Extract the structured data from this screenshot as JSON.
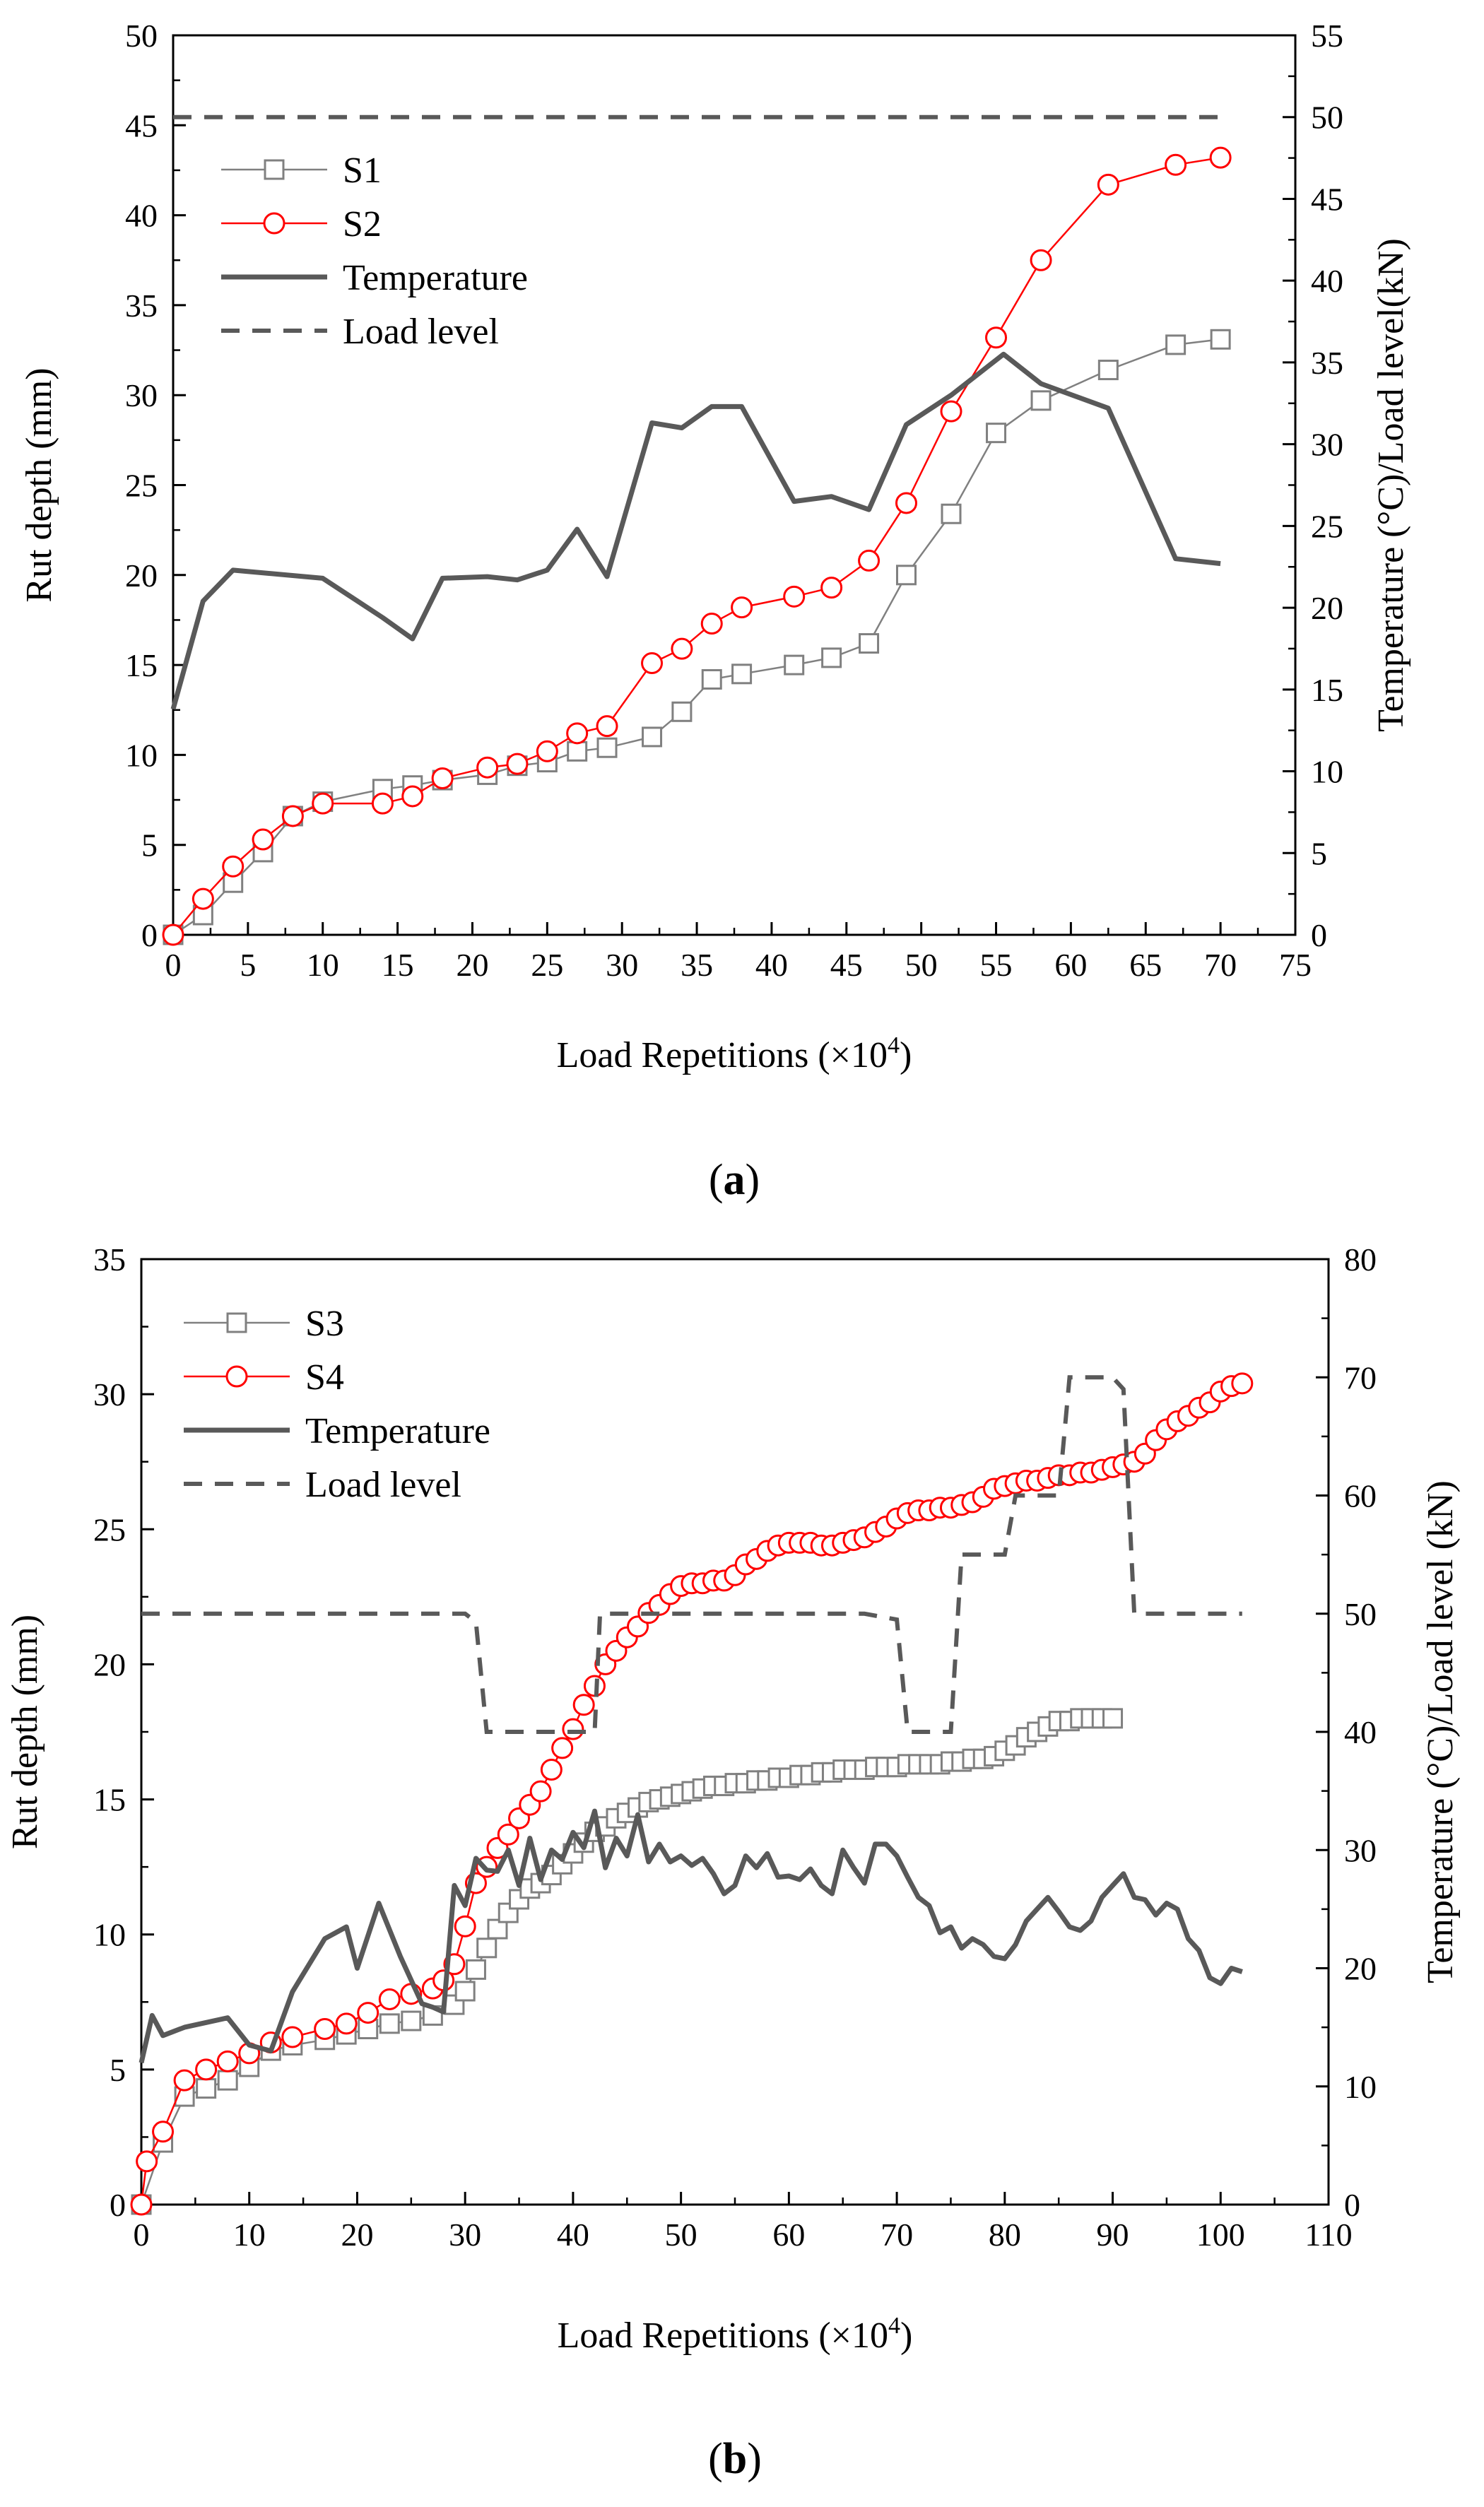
{
  "chart_data": [
    {
      "id": "a",
      "type": "line",
      "caption_letter": "a",
      "xlabel": "Load Repetitions (×10",
      "xlabel_sup": "4",
      "xlabel_end": ")",
      "ylabel": "Rut depth (mm)",
      "y2label": "Temperature (°C)/Load level(kN)",
      "xlim": [
        0,
        75
      ],
      "xticks": [
        0,
        5,
        10,
        15,
        20,
        25,
        30,
        35,
        40,
        45,
        50,
        55,
        60,
        65,
        70,
        75
      ],
      "ylim": [
        0,
        50
      ],
      "yticks": [
        0,
        5,
        10,
        15,
        20,
        25,
        30,
        35,
        40,
        45,
        50
      ],
      "y2lim": [
        0,
        55
      ],
      "y2ticks": [
        0,
        5,
        10,
        15,
        20,
        25,
        30,
        35,
        40,
        45,
        50,
        55
      ],
      "series": [
        {
          "name": "S1",
          "axis": "left",
          "style": "square",
          "color": "#808080",
          "x": [
            0,
            2,
            4,
            6,
            8,
            10,
            14,
            16,
            18,
            21,
            23,
            25,
            27,
            29,
            32,
            34,
            36,
            38,
            41.5,
            44,
            46.5,
            49,
            52,
            55,
            58,
            62.5,
            67,
            70
          ],
          "y": [
            0,
            1.1,
            2.9,
            4.6,
            6.6,
            7.4,
            8.1,
            8.3,
            8.6,
            8.9,
            9.4,
            9.6,
            10.2,
            10.4,
            11.0,
            12.4,
            14.2,
            14.5,
            15.0,
            15.4,
            16.2,
            20.0,
            23.4,
            27.9,
            29.7,
            31.4,
            32.8,
            33.1
          ]
        },
        {
          "name": "S2",
          "axis": "left",
          "style": "circle",
          "color": "#ff0000",
          "x": [
            0,
            2,
            4,
            6,
            8,
            10,
            14,
            16,
            18,
            21,
            23,
            25,
            27,
            29,
            32,
            34,
            36,
            38,
            41.5,
            44,
            46.5,
            49,
            52,
            55,
            58,
            62.5,
            67,
            70
          ],
          "y": [
            0,
            2.0,
            3.8,
            5.3,
            6.6,
            7.3,
            7.3,
            7.7,
            8.7,
            9.3,
            9.5,
            10.2,
            11.2,
            11.6,
            15.1,
            15.9,
            17.3,
            18.2,
            18.8,
            19.3,
            20.8,
            24.0,
            29.1,
            33.2,
            37.5,
            41.7,
            42.8,
            43.2
          ]
        },
        {
          "name": "Temperature",
          "axis": "right",
          "style": "solid",
          "color": "#595959",
          "x": [
            0,
            2,
            4,
            10,
            14,
            16,
            18,
            21,
            23,
            25,
            27,
            29,
            32,
            34,
            36,
            38,
            41.5,
            44,
            46.5,
            49,
            52,
            55.5,
            58,
            62.5,
            67,
            70
          ],
          "y": [
            13.8,
            20.4,
            22.3,
            21.8,
            19.4,
            18.1,
            21.8,
            21.9,
            21.7,
            22.3,
            24.8,
            21.9,
            31.3,
            31.0,
            32.3,
            32.3,
            26.5,
            26.8,
            26.0,
            31.2,
            33.0,
            35.5,
            33.7,
            32.2,
            23.0,
            22.7
          ]
        },
        {
          "name": "Load level",
          "axis": "right",
          "style": "dashed",
          "color": "#595959",
          "x": [
            0,
            70
          ],
          "y": [
            50,
            50
          ]
        }
      ]
    },
    {
      "id": "b",
      "type": "line",
      "caption_letter": "b",
      "xlabel": "Load Repetitions (×10",
      "xlabel_sup": "4",
      "xlabel_end": ")",
      "ylabel": "Rut depth (mm)",
      "y2label": "Temperature (°C)/Load level (kN)",
      "xlim": [
        0,
        110
      ],
      "xticks": [
        0,
        10,
        20,
        30,
        40,
        50,
        60,
        70,
        80,
        90,
        100,
        110
      ],
      "ylim": [
        0,
        35
      ],
      "yticks": [
        0,
        5,
        10,
        15,
        20,
        25,
        30,
        35
      ],
      "y2lim": [
        0,
        80
      ],
      "y2ticks": [
        0,
        10,
        20,
        30,
        40,
        50,
        60,
        70,
        80
      ],
      "series": [
        {
          "name": "S3",
          "axis": "left",
          "style": "square",
          "color": "#808080",
          "x": [
            0,
            2,
            4,
            6,
            8,
            10,
            12,
            14,
            17,
            19,
            21,
            23,
            25,
            27,
            29,
            30,
            31,
            32,
            33,
            34,
            35,
            36,
            37,
            38,
            39,
            40,
            41,
            42,
            43,
            44,
            45,
            46,
            47,
            48,
            49,
            50,
            51,
            52,
            53,
            54,
            55,
            56,
            57,
            58,
            59,
            60,
            61,
            62,
            63,
            64,
            65,
            66,
            67,
            68,
            69,
            70,
            71,
            72,
            73,
            74,
            75,
            76,
            77,
            78,
            79,
            80,
            81,
            82,
            83,
            84,
            85,
            86,
            87,
            88,
            89,
            90
          ],
          "y": [
            0,
            2.3,
            4.0,
            4.3,
            4.6,
            5.1,
            5.7,
            5.9,
            6.1,
            6.3,
            6.5,
            6.7,
            6.8,
            7.0,
            7.4,
            7.9,
            8.7,
            9.5,
            10.2,
            10.8,
            11.3,
            11.7,
            11.9,
            12.2,
            12.6,
            13.0,
            13.4,
            13.8,
            14.0,
            14.3,
            14.5,
            14.7,
            14.9,
            15.0,
            15.1,
            15.2,
            15.3,
            15.4,
            15.5,
            15.5,
            15.6,
            15.6,
            15.7,
            15.7,
            15.8,
            15.8,
            15.9,
            15.9,
            16.0,
            16.0,
            16.1,
            16.1,
            16.1,
            16.2,
            16.2,
            16.2,
            16.3,
            16.3,
            16.3,
            16.3,
            16.4,
            16.4,
            16.5,
            16.5,
            16.6,
            16.8,
            17.0,
            17.3,
            17.5,
            17.7,
            17.9,
            17.9,
            18.0,
            18.0,
            18.0,
            18.0
          ]
        },
        {
          "name": "S4",
          "axis": "left",
          "style": "circle",
          "color": "#ff0000",
          "x": [
            0,
            0.5,
            2,
            4,
            6,
            8,
            10,
            12,
            14,
            17,
            19,
            21,
            23,
            25,
            27,
            28,
            29,
            30,
            31,
            32,
            33,
            34,
            35,
            36,
            37,
            38,
            39,
            40,
            41,
            42,
            43,
            44,
            45,
            46,
            47,
            48,
            49,
            50,
            51,
            52,
            53,
            54,
            55,
            56,
            57,
            58,
            59,
            60,
            61,
            62,
            63,
            64,
            65,
            66,
            67,
            68,
            69,
            70,
            71,
            72,
            73,
            74,
            75,
            76,
            77,
            78,
            79,
            80,
            81,
            82,
            83,
            84,
            85,
            86,
            87,
            88,
            89,
            90,
            91,
            92,
            93,
            94,
            95,
            96,
            97,
            98,
            99,
            100,
            101,
            102
          ],
          "y": [
            0,
            1.6,
            2.7,
            4.6,
            5.0,
            5.3,
            5.6,
            6.0,
            6.2,
            6.5,
            6.7,
            7.1,
            7.6,
            7.8,
            8.0,
            8.3,
            8.9,
            10.3,
            11.9,
            12.5,
            13.2,
            13.7,
            14.3,
            14.8,
            15.3,
            16.1,
            16.9,
            17.6,
            18.5,
            19.2,
            20.0,
            20.5,
            21.0,
            21.4,
            21.9,
            22.2,
            22.6,
            22.9,
            23.0,
            23.0,
            23.1,
            23.1,
            23.3,
            23.7,
            23.9,
            24.2,
            24.4,
            24.5,
            24.5,
            24.5,
            24.4,
            24.4,
            24.5,
            24.6,
            24.7,
            24.9,
            25.1,
            25.4,
            25.6,
            25.7,
            25.7,
            25.8,
            25.8,
            25.9,
            26.0,
            26.2,
            26.5,
            26.6,
            26.7,
            26.8,
            26.8,
            26.9,
            27.0,
            27.0,
            27.1,
            27.1,
            27.2,
            27.3,
            27.4,
            27.5,
            27.8,
            28.3,
            28.7,
            29.0,
            29.2,
            29.5,
            29.7,
            30.1,
            30.3,
            30.4
          ]
        },
        {
          "name": "Temperature",
          "axis": "right",
          "style": "solid",
          "color": "#595959",
          "x": [
            0,
            1,
            2,
            4,
            8,
            10,
            12,
            14,
            17,
            19,
            20,
            22,
            24,
            26,
            27,
            28,
            29,
            30,
            31,
            32,
            33,
            34,
            35,
            36,
            37,
            38,
            39,
            40,
            41,
            42,
            43,
            44,
            45,
            46,
            47,
            48,
            49,
            50,
            51,
            52,
            53,
            54,
            55,
            56,
            57,
            58,
            59,
            60,
            61,
            62,
            63,
            64,
            65,
            66,
            67,
            68,
            69,
            70,
            71,
            72,
            73,
            74,
            75,
            76,
            77,
            78,
            79,
            80,
            81,
            82,
            83,
            84,
            85,
            86,
            87,
            88,
            89,
            90,
            91,
            92,
            93,
            94,
            95,
            96,
            97,
            98,
            99,
            100,
            101,
            102
          ],
          "y": [
            12,
            16,
            14.3,
            15,
            15.8,
            13.5,
            13,
            18,
            22.5,
            23.5,
            20,
            25.5,
            21,
            17,
            16.7,
            16.3,
            27,
            25.3,
            29.3,
            28.3,
            28.2,
            30,
            27,
            31,
            27.5,
            30,
            29.2,
            31.5,
            30.2,
            33.3,
            28.5,
            31,
            29.5,
            33,
            29,
            30.5,
            29,
            29.5,
            28.7,
            29.3,
            28,
            26.3,
            27,
            29.5,
            28.5,
            29.7,
            27.7,
            27.8,
            27.5,
            28.4,
            27,
            26.3,
            30,
            28.5,
            27.2,
            30.5,
            30.5,
            29.5,
            27.7,
            26,
            25.3,
            23,
            23.5,
            21.7,
            22.5,
            22,
            21,
            20.8,
            22,
            24,
            25,
            26,
            24.8,
            23.5,
            23.2,
            24,
            26,
            27,
            28,
            26,
            25.8,
            24.5,
            25.5,
            25,
            22.5,
            21.5,
            19.2,
            18.7,
            20,
            19.7
          ]
        },
        {
          "name": "Load level",
          "axis": "right",
          "style": "dashed",
          "color": "#595959",
          "x": [
            0,
            30,
            31,
            32,
            37,
            41,
            42,
            42.5,
            67,
            70,
            71,
            74,
            75,
            76,
            79,
            80,
            81,
            84,
            85,
            86,
            90,
            91,
            92,
            102
          ],
          "y": [
            50,
            50,
            49.3,
            40,
            40,
            40,
            40,
            50,
            50,
            49.5,
            40,
            40,
            40,
            55,
            55,
            55,
            60,
            60,
            60,
            70,
            70,
            69,
            50,
            50
          ]
        }
      ]
    }
  ]
}
